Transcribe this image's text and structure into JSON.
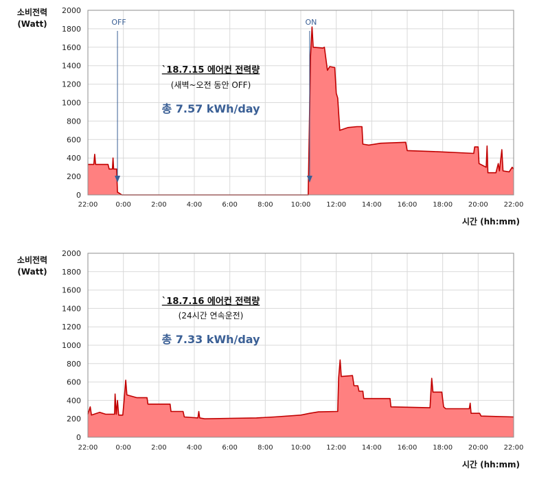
{
  "colors": {
    "line": "#c00000",
    "fill": "#ff8080",
    "annotation": "#3a5f95",
    "grid": "#d9d9d9",
    "frame": "#8c8c8c"
  },
  "chart_data": [
    {
      "type": "area",
      "ylabel_line1": "소비전력",
      "ylabel_line2": "(Watt)",
      "xlabel": "시간 (hh:mm)",
      "ylim": [
        0,
        2000
      ],
      "yticks": [
        "0",
        "200",
        "400",
        "600",
        "800",
        "1000",
        "1200",
        "1400",
        "1600",
        "1800",
        "2000"
      ],
      "xticks": [
        "22:00",
        "0:00",
        "2:00",
        "4:00",
        "6:00",
        "8:00",
        "10:00",
        "12:00",
        "14:00",
        "16:00",
        "18:00",
        "20:00",
        "22:00"
      ],
      "grid": true,
      "annotation": {
        "title": "`18.7.15  에어컨 전력량",
        "subtitle": "(새벽~오전 동안 OFF)",
        "total": "총 7.57 kWh/day"
      },
      "markers": [
        {
          "label": "OFF",
          "time": "23:40"
        },
        {
          "label": "ON",
          "time": "10:30"
        }
      ],
      "points": [
        [
          "22:00",
          330
        ],
        [
          "22:20",
          330
        ],
        [
          "22:23",
          440
        ],
        [
          "22:26",
          330
        ],
        [
          "23:08",
          330
        ],
        [
          "23:12",
          280
        ],
        [
          "23:23",
          280
        ],
        [
          "23:25",
          400
        ],
        [
          "23:27",
          280
        ],
        [
          "23:37",
          280
        ],
        [
          "23:40",
          30
        ],
        [
          "23:48",
          15
        ],
        [
          "23:55",
          0
        ],
        [
          "10:25",
          0
        ],
        [
          "10:33",
          1500
        ],
        [
          "10:38",
          1820
        ],
        [
          "10:42",
          1600
        ],
        [
          "11:15",
          1590
        ],
        [
          "11:20",
          1600
        ],
        [
          "11:30",
          1350
        ],
        [
          "11:38",
          1390
        ],
        [
          "11:55",
          1380
        ],
        [
          "12:00",
          1100
        ],
        [
          "12:05",
          1050
        ],
        [
          "12:12",
          700
        ],
        [
          "12:40",
          730
        ],
        [
          "13:10",
          740
        ],
        [
          "13:27",
          740
        ],
        [
          "13:30",
          550
        ],
        [
          "13:50",
          540
        ],
        [
          "14:30",
          560
        ],
        [
          "15:55",
          570
        ],
        [
          "16:00",
          480
        ],
        [
          "17:30",
          470
        ],
        [
          "19:45",
          450
        ],
        [
          "19:48",
          520
        ],
        [
          "20:00",
          520
        ],
        [
          "20:03",
          340
        ],
        [
          "20:15",
          320
        ],
        [
          "20:27",
          300
        ],
        [
          "20:30",
          530
        ],
        [
          "20:33",
          240
        ],
        [
          "21:00",
          240
        ],
        [
          "21:08",
          340
        ],
        [
          "21:12",
          260
        ],
        [
          "21:20",
          490
        ],
        [
          "21:24",
          260
        ],
        [
          "21:45",
          250
        ],
        [
          "21:55",
          300
        ],
        [
          "22:00",
          280
        ]
      ]
    },
    {
      "type": "area",
      "ylabel_line1": "소비전력",
      "ylabel_line2": "(Watt)",
      "xlabel": "시간 (hh:mm)",
      "ylim": [
        0,
        2000
      ],
      "yticks": [
        "0",
        "200",
        "400",
        "600",
        "800",
        "1000",
        "1200",
        "1400",
        "1600",
        "1800",
        "2000"
      ],
      "xticks": [
        "22:00",
        "0:00",
        "2:00",
        "4:00",
        "6:00",
        "8:00",
        "10:00",
        "12:00",
        "14:00",
        "16:00",
        "18:00",
        "20:00",
        "22:00"
      ],
      "grid": true,
      "annotation": {
        "title": "`18.7.16  에어컨 전력량",
        "subtitle": "(24시간 연속운전)",
        "total": "총 7.33 kWh/day"
      },
      "markers": [],
      "points": [
        [
          "22:00",
          250
        ],
        [
          "22:08",
          330
        ],
        [
          "22:12",
          240
        ],
        [
          "22:40",
          270
        ],
        [
          "23:00",
          250
        ],
        [
          "23:30",
          250
        ],
        [
          "23:32",
          470
        ],
        [
          "23:36",
          250
        ],
        [
          "23:40",
          400
        ],
        [
          "23:44",
          240
        ],
        [
          "23:58",
          240
        ],
        [
          "00:02",
          380
        ],
        [
          "00:08",
          620
        ],
        [
          "00:12",
          460
        ],
        [
          "00:45",
          430
        ],
        [
          "01:20",
          430
        ],
        [
          "01:23",
          360
        ],
        [
          "02:38",
          360
        ],
        [
          "02:41",
          280
        ],
        [
          "03:22",
          280
        ],
        [
          "03:26",
          220
        ],
        [
          "04:12",
          210
        ],
        [
          "04:15",
          280
        ],
        [
          "04:18",
          210
        ],
        [
          "04:35",
          200
        ],
        [
          "06:00",
          205
        ],
        [
          "07:30",
          210
        ],
        [
          "08:30",
          220
        ],
        [
          "10:00",
          240
        ],
        [
          "10:30",
          260
        ],
        [
          "11:00",
          275
        ],
        [
          "12:05",
          280
        ],
        [
          "12:08",
          640
        ],
        [
          "12:13",
          840
        ],
        [
          "12:17",
          660
        ],
        [
          "12:55",
          670
        ],
        [
          "13:00",
          560
        ],
        [
          "13:13",
          560
        ],
        [
          "13:17",
          500
        ],
        [
          "13:30",
          500
        ],
        [
          "13:33",
          420
        ],
        [
          "15:02",
          420
        ],
        [
          "15:05",
          330
        ],
        [
          "17:17",
          320
        ],
        [
          "17:20",
          480
        ],
        [
          "17:23",
          640
        ],
        [
          "17:27",
          490
        ],
        [
          "17:57",
          490
        ],
        [
          "18:03",
          330
        ],
        [
          "18:10",
          310
        ],
        [
          "19:30",
          310
        ],
        [
          "19:33",
          370
        ],
        [
          "19:36",
          260
        ],
        [
          "20:05",
          260
        ],
        [
          "20:10",
          230
        ],
        [
          "22:00",
          220
        ]
      ]
    }
  ]
}
